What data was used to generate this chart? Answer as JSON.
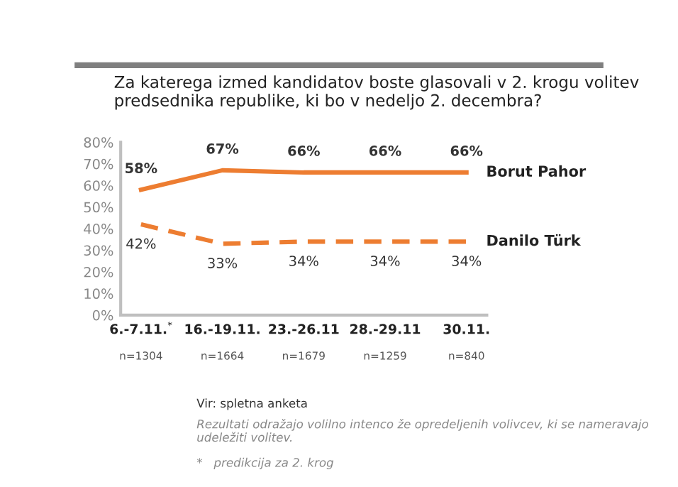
{
  "chart_data": {
    "type": "line",
    "title": "Za katerega izmed kandidatov boste glasovali v 2. krogu volitev predsednika republike, ki bo v nedeljo 2. decembra?",
    "categories": [
      "6.-7.11.$^{*}$\nn=1304",
      "16.-19.11.\nn=1664",
      "23.-26.11\nn=1679",
      "28.-29.11\nn=1259",
      "30.11.\nn=840"
    ],
    "series": [
      {
        "name": "Borut Pahor",
        "color": "#ed7d31",
        "line_style": "solid",
        "values": [
          58,
          67,
          66,
          66,
          66
        ],
        "value_labels": [
          "58%",
          "67%",
          "66%",
          "66%",
          "66%"
        ]
      },
      {
        "name": "Danilo Türk",
        "color": "#ed7d31",
        "line_style": "dashed",
        "values": [
          42,
          33,
          34,
          34,
          34
        ],
        "value_labels": [
          "42%",
          "33%",
          "34%",
          "34%",
          "34%"
        ]
      }
    ],
    "ylim": [
      0,
      80
    ],
    "yticks": [
      {
        "value": 0,
        "label": "0%"
      },
      {
        "value": 10,
        "label": "10%"
      },
      {
        "value": 20,
        "label": "20%"
      },
      {
        "value": 30,
        "label": "30%"
      },
      {
        "value": 40,
        "label": "40%"
      },
      {
        "value": 50,
        "label": "50%"
      },
      {
        "value": 60,
        "label": "60%"
      },
      {
        "value": 70,
        "label": "70%"
      },
      {
        "value": 80,
        "label": "80%"
      }
    ],
    "grid": false,
    "legend": false,
    "marker": "none",
    "annotations": [
      "Vir: spletna anketa",
      "Rezultati odražajo volilno intenco že opredeljenih volivcev, ki se nameravajo udeležiti volitev.",
      "*   predikcija za 2. krog"
    ]
  }
}
